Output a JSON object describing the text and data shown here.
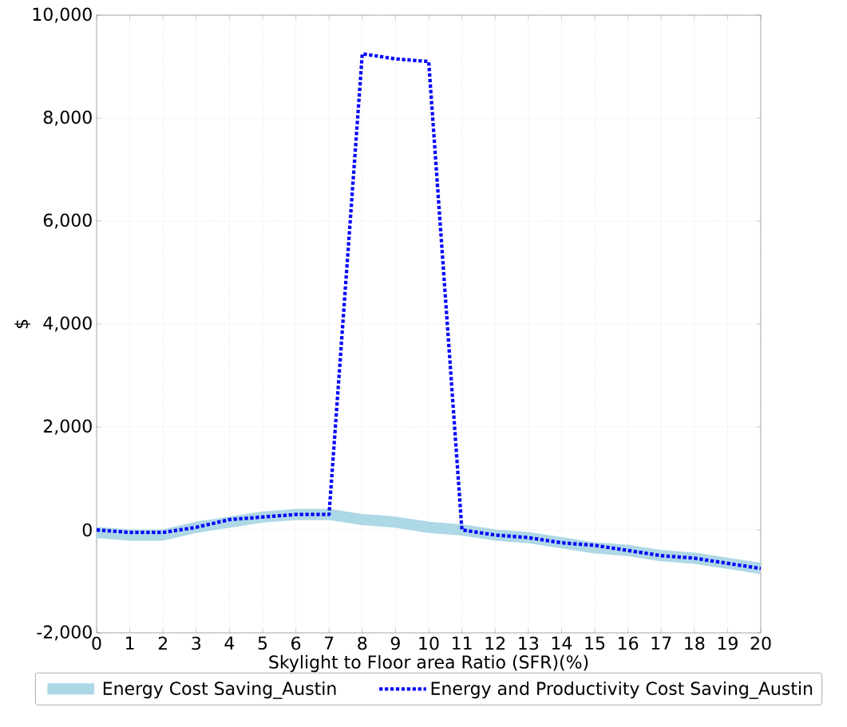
{
  "chart_data": {
    "type": "line",
    "xlabel": "Skylight to Floor area Ratio (SFR)(%)",
    "ylabel": "$",
    "x": [
      0,
      1,
      2,
      3,
      4,
      5,
      6,
      7,
      8,
      9,
      10,
      11,
      12,
      13,
      14,
      15,
      16,
      17,
      18,
      19,
      20
    ],
    "series": [
      {
        "name": "Energy Cost Saving_Austin",
        "color": "#add8e6",
        "line_style": "solid",
        "values": [
          -50,
          -100,
          -100,
          50,
          150,
          250,
          300,
          300,
          200,
          150,
          50,
          0,
          -100,
          -150,
          -250,
          -350,
          -400,
          -500,
          -550,
          -650,
          -750
        ]
      },
      {
        "name": "Energy and Productivity Cost Saving_Austin",
        "color": "#0000ff",
        "line_style": "dotted",
        "values": [
          0,
          -50,
          -50,
          50,
          200,
          250,
          300,
          300,
          9250,
          9150,
          9100,
          0,
          -100,
          -150,
          -250,
          -300,
          -400,
          -500,
          -550,
          -650,
          -750
        ]
      }
    ],
    "xlim": [
      0,
      20
    ],
    "ylim": [
      -2000,
      10000
    ],
    "xticks": [
      0,
      1,
      2,
      3,
      4,
      5,
      6,
      7,
      8,
      9,
      10,
      11,
      12,
      13,
      14,
      15,
      16,
      17,
      18,
      19,
      20
    ],
    "yticks": [
      {
        "value": -2000,
        "label": "-2,000"
      },
      {
        "value": 0,
        "label": "0"
      },
      {
        "value": 2000,
        "label": "2,000"
      },
      {
        "value": 4000,
        "label": "4,000"
      },
      {
        "value": 6000,
        "label": "6,000"
      },
      {
        "value": 8000,
        "label": "8,000"
      },
      {
        "value": 10000,
        "label": "10,000"
      }
    ],
    "grid": true,
    "legend": "bottom"
  }
}
